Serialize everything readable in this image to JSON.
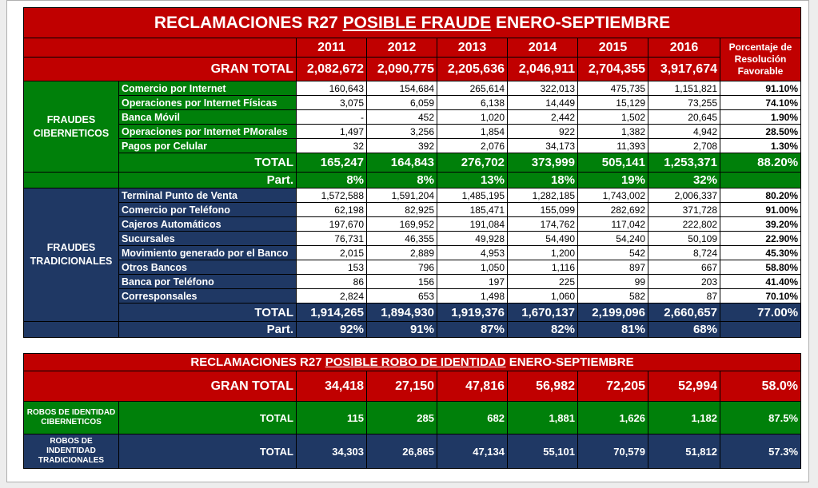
{
  "fraude": {
    "title_pre": "RECLAMACIONES R27 ",
    "title_u": "POSIBLE FRAUDE",
    "title_post": " ENERO-SEPTIEMBRE",
    "years": [
      "2011",
      "2012",
      "2013",
      "2014",
      "2015",
      "2016"
    ],
    "pct_header": "Porcentaje de Resolución Favorable",
    "gran_total": {
      "label": "GRAN TOTAL",
      "values": [
        "2,082,672",
        "2,090,775",
        "2,205,636",
        "2,046,911",
        "2,704,355",
        "3,917,674"
      ]
    },
    "ciber": {
      "category": "FRAUDES CIBERNETICOS",
      "rows": [
        {
          "label": "Comercio por Internet",
          "values": [
            "160,643",
            "154,684",
            "265,614",
            "322,013",
            "475,735",
            "1,151,821"
          ],
          "pct": "91.10%"
        },
        {
          "label": "Operaciones por Internet Físicas",
          "values": [
            "3,075",
            "6,059",
            "6,138",
            "14,449",
            "15,129",
            "73,255"
          ],
          "pct": "74.10%"
        },
        {
          "label": "Banca Móvil",
          "values": [
            "-",
            "452",
            "1,020",
            "2,442",
            "1,502",
            "20,645"
          ],
          "pct": "1.90%"
        },
        {
          "label": "Operaciones por Internet PMorales",
          "values": [
            "1,497",
            "3,256",
            "1,854",
            "922",
            "1,382",
            "4,942"
          ],
          "pct": "28.50%"
        },
        {
          "label": "Pagos por Celular",
          "values": [
            "32",
            "392",
            "2,076",
            "34,173",
            "11,393",
            "2,708"
          ],
          "pct": "1.30%"
        }
      ],
      "total": {
        "label": "TOTAL",
        "values": [
          "165,247",
          "164,843",
          "276,702",
          "373,999",
          "505,141",
          "1,253,371"
        ],
        "pct": "88.20%"
      },
      "part": {
        "label": "Part.",
        "values": [
          "8%",
          "8%",
          "13%",
          "18%",
          "19%",
          "32%"
        ]
      }
    },
    "trad": {
      "category": "FRAUDES TRADICIONALES",
      "rows": [
        {
          "label": "Terminal Punto de Venta",
          "values": [
            "1,572,588",
            "1,591,204",
            "1,485,195",
            "1,282,185",
            "1,743,002",
            "2,006,337"
          ],
          "pct": "80.20%"
        },
        {
          "label": "Comercio por Teléfono",
          "values": [
            "62,198",
            "82,925",
            "185,471",
            "155,099",
            "282,692",
            "371,728"
          ],
          "pct": "91.00%"
        },
        {
          "label": "Cajeros Automáticos",
          "values": [
            "197,670",
            "169,952",
            "191,084",
            "174,762",
            "117,042",
            "222,802"
          ],
          "pct": "39.20%"
        },
        {
          "label": "Sucursales",
          "values": [
            "76,731",
            "46,355",
            "49,928",
            "54,490",
            "54,240",
            "50,109"
          ],
          "pct": "22.90%"
        },
        {
          "label": "Movimiento generado por el Banco",
          "values": [
            "2,015",
            "2,889",
            "4,953",
            "1,200",
            "542",
            "8,724"
          ],
          "pct": "45.30%"
        },
        {
          "label": "Otros Bancos",
          "values": [
            "153",
            "796",
            "1,050",
            "1,116",
            "897",
            "667"
          ],
          "pct": "58.80%"
        },
        {
          "label": "Banca por Teléfono",
          "values": [
            "86",
            "156",
            "197",
            "225",
            "99",
            "203"
          ],
          "pct": "41.40%"
        },
        {
          "label": "Corresponsales",
          "values": [
            "2,824",
            "653",
            "1,498",
            "1,060",
            "582",
            "87"
          ],
          "pct": "70.10%"
        }
      ],
      "total": {
        "label": "TOTAL",
        "values": [
          "1,914,265",
          "1,894,930",
          "1,919,376",
          "1,670,137",
          "2,199,096",
          "2,660,657"
        ],
        "pct": "77.00%"
      },
      "part": {
        "label": "Part.",
        "values": [
          "92%",
          "91%",
          "87%",
          "82%",
          "81%",
          "68%"
        ]
      }
    }
  },
  "robo": {
    "title_pre": "RECLAMACIONES R27 ",
    "title_u": "POSIBLE ROBO DE IDENTIDAD",
    "title_post": " ENERO-SEPTIEMBRE",
    "gran_total": {
      "label": "GRAN TOTAL",
      "values": [
        "34,418",
        "27,150",
        "47,816",
        "56,982",
        "72,205",
        "52,994"
      ],
      "pct": "58.0%"
    },
    "ciber": {
      "category": "ROBOS DE IDENTIDAD CIBERNETICOS",
      "label": "TOTAL",
      "values": [
        "115",
        "285",
        "682",
        "1,881",
        "1,626",
        "1,182"
      ],
      "pct": "87.5%"
    },
    "trad": {
      "category": "ROBOS DE INDENTIDAD TRADICIONALES",
      "label": "TOTAL",
      "values": [
        "34,303",
        "26,865",
        "47,134",
        "55,101",
        "70,579",
        "51,812"
      ],
      "pct": "57.3%"
    }
  }
}
